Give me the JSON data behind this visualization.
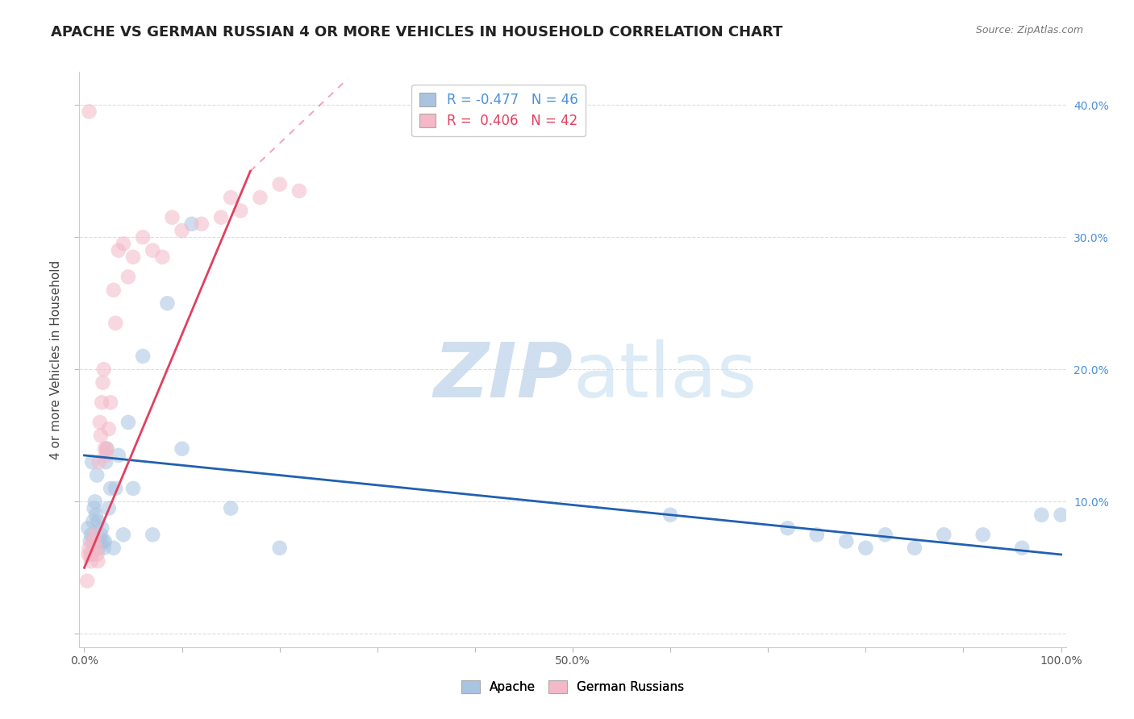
{
  "title": "APACHE VS GERMAN RUSSIAN 4 OR MORE VEHICLES IN HOUSEHOLD CORRELATION CHART",
  "source": "Source: ZipAtlas.com",
  "ylabel": "4 or more Vehicles in Household",
  "xlim": [
    -0.005,
    1.005
  ],
  "ylim": [
    -0.01,
    0.425
  ],
  "x_ticks": [
    0.0,
    0.1,
    0.2,
    0.3,
    0.4,
    0.5,
    0.6,
    0.7,
    0.8,
    0.9,
    1.0
  ],
  "x_tick_labels": [
    "0.0%",
    "",
    "",
    "",
    "",
    "50.0%",
    "",
    "",
    "",
    "",
    "100.0%"
  ],
  "y_ticks": [
    0.0,
    0.1,
    0.2,
    0.3,
    0.4
  ],
  "y_tick_labels_right": [
    "",
    "10.0%",
    "20.0%",
    "30.0%",
    "40.0%"
  ],
  "apache_color": "#a8c4e0",
  "german_color": "#f4b8c8",
  "apache_line_color": "#2060b0",
  "german_line_color": "#e04060",
  "apache_scatter_x": [
    0.004,
    0.006,
    0.007,
    0.008,
    0.009,
    0.01,
    0.011,
    0.012,
    0.013,
    0.014,
    0.015,
    0.016,
    0.017,
    0.018,
    0.019,
    0.02,
    0.021,
    0.022,
    0.023,
    0.025,
    0.027,
    0.03,
    0.032,
    0.035,
    0.04,
    0.045,
    0.05,
    0.06,
    0.07,
    0.085,
    0.1,
    0.11,
    0.15,
    0.2,
    0.6,
    0.72,
    0.75,
    0.78,
    0.8,
    0.82,
    0.85,
    0.88,
    0.92,
    0.96,
    0.98,
    1.0
  ],
  "apache_scatter_y": [
    0.08,
    0.07,
    0.075,
    0.13,
    0.085,
    0.095,
    0.1,
    0.09,
    0.12,
    0.085,
    0.065,
    0.07,
    0.075,
    0.08,
    0.07,
    0.065,
    0.07,
    0.13,
    0.14,
    0.095,
    0.11,
    0.065,
    0.11,
    0.135,
    0.075,
    0.16,
    0.11,
    0.21,
    0.075,
    0.25,
    0.14,
    0.31,
    0.095,
    0.065,
    0.09,
    0.08,
    0.075,
    0.07,
    0.065,
    0.075,
    0.065,
    0.075,
    0.075,
    0.065,
    0.09,
    0.09
  ],
  "german_scatter_x": [
    0.003,
    0.004,
    0.005,
    0.006,
    0.007,
    0.008,
    0.009,
    0.01,
    0.011,
    0.012,
    0.013,
    0.014,
    0.015,
    0.016,
    0.017,
    0.018,
    0.019,
    0.02,
    0.021,
    0.022,
    0.023,
    0.025,
    0.027,
    0.03,
    0.032,
    0.035,
    0.04,
    0.045,
    0.05,
    0.06,
    0.07,
    0.08,
    0.09,
    0.1,
    0.12,
    0.14,
    0.15,
    0.16,
    0.18,
    0.2,
    0.22,
    0.005
  ],
  "german_scatter_y": [
    0.04,
    0.06,
    0.065,
    0.06,
    0.055,
    0.06,
    0.07,
    0.07,
    0.075,
    0.065,
    0.06,
    0.055,
    0.13,
    0.16,
    0.15,
    0.175,
    0.19,
    0.2,
    0.14,
    0.135,
    0.14,
    0.155,
    0.175,
    0.26,
    0.235,
    0.29,
    0.295,
    0.27,
    0.285,
    0.3,
    0.29,
    0.285,
    0.315,
    0.305,
    0.31,
    0.315,
    0.33,
    0.32,
    0.33,
    0.34,
    0.335,
    0.395
  ],
  "apache_trend_start_x": 0.0,
  "apache_trend_start_y": 0.135,
  "apache_trend_end_x": 1.0,
  "apache_trend_end_y": 0.06,
  "german_trend_solid_x0": 0.0,
  "german_trend_solid_y0": 0.05,
  "german_trend_solid_x1": 0.17,
  "german_trend_solid_y1": 0.35,
  "german_trend_dash_x0": 0.17,
  "german_trend_dash_y0": 0.35,
  "german_trend_dash_x1": 0.27,
  "german_trend_dash_y1": 0.42,
  "watermark_zip_color": "#c5d8eb",
  "watermark_atlas_color": "#c5dff0",
  "background_color": "#ffffff",
  "grid_color": "#dddddd",
  "title_fontsize": 13,
  "axis_label_fontsize": 11,
  "tick_fontsize": 10,
  "legend_fontsize": 12,
  "scatter_size": 180,
  "scatter_alpha": 0.55,
  "right_tick_color": "#4a90d9"
}
